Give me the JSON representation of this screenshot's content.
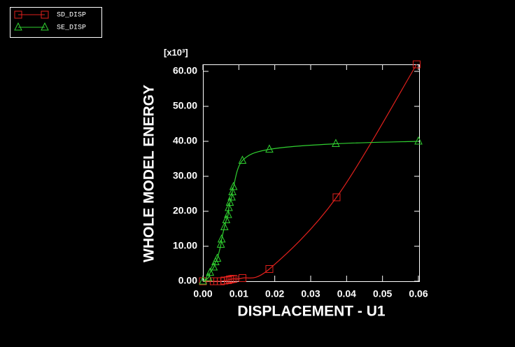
{
  "chart_data": {
    "type": "line",
    "xlabel": "DISPLACEMENT - U1",
    "ylabel": "WHOLE MODEL ENERGY",
    "y_multiplier": "[x10³]",
    "xlim": [
      0,
      0.06
    ],
    "ylim": [
      0,
      62
    ],
    "xticks": [
      {
        "value": 0,
        "label": "0.00"
      },
      {
        "value": 0.01,
        "label": "0.01"
      },
      {
        "value": 0.02,
        "label": "0.02"
      },
      {
        "value": 0.03,
        "label": "0.03"
      },
      {
        "value": 0.04,
        "label": "0.04"
      },
      {
        "value": 0.05,
        "label": "0.05"
      },
      {
        "value": 0.06,
        "label": "0.06"
      }
    ],
    "yticks": [
      {
        "value": 0,
        "label": "0.00"
      },
      {
        "value": 10,
        "label": "10.00"
      },
      {
        "value": 20,
        "label": "20.00"
      },
      {
        "value": 30,
        "label": "30.00"
      },
      {
        "value": 40,
        "label": "40.00"
      },
      {
        "value": 50,
        "label": "50.00"
      },
      {
        "value": 60,
        "label": "60.00"
      }
    ],
    "legend": "upper left",
    "series": [
      {
        "name": "SD_DISP",
        "color": "#e0201c",
        "marker": "square",
        "x": [
          0,
          0.003,
          0.004,
          0.005,
          0.006,
          0.007,
          0.0075,
          0.008,
          0.0085,
          0.011,
          0.0185,
          0.0372,
          0.0595
        ],
        "values": [
          0,
          0,
          0,
          0,
          0.2,
          0.3,
          0.5,
          0.6,
          0.7,
          0.9,
          3.5,
          24,
          62
        ]
      },
      {
        "name": "SE_DISP",
        "color": "#30d030",
        "marker": "triangle",
        "x": [
          0,
          0.0015,
          0.002,
          0.003,
          0.0035,
          0.004,
          0.005,
          0.0052,
          0.006,
          0.0065,
          0.007,
          0.0072,
          0.0075,
          0.008,
          0.0082,
          0.0085,
          0.011,
          0.0185,
          0.037,
          0.06
        ],
        "values": [
          0,
          1,
          2.5,
          4,
          5.5,
          6.5,
          10.5,
          12,
          15.5,
          17.5,
          19,
          21,
          22.5,
          24,
          25.5,
          27,
          34.5,
          37.7,
          39.3,
          40
        ]
      }
    ]
  }
}
